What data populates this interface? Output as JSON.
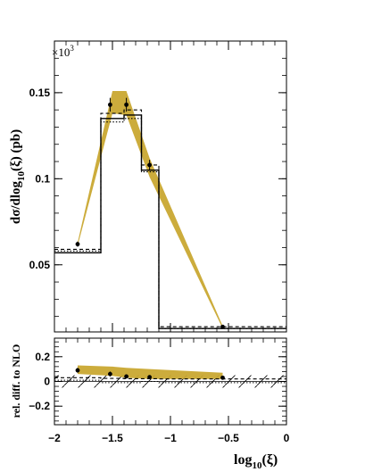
{
  "chart_data": [
    {
      "type": "line",
      "ylabel": "dσ/dlog10(ξ) (pb)",
      "ylabel_parts": [
        "dσ/dlog",
        "10",
        "(ξ) (pb)"
      ],
      "multiplier": "×10",
      "multiplier_exp": "3",
      "xlim": [
        -2.0,
        0.0
      ],
      "ylim": [
        0.011,
        0.18
      ],
      "y_ticks": [
        0.05,
        0.1,
        0.15
      ],
      "y_tick_labels": [
        "0.05",
        "0.1",
        "0.15"
      ],
      "bin_edges": [
        -2.0,
        -1.6,
        -1.4,
        -1.25,
        -1.1,
        0.0
      ],
      "series": [
        {
          "style": "solid",
          "values": [
            0.057,
            0.135,
            0.137,
            0.105,
            0.013
          ]
        },
        {
          "style": "dashed",
          "values": [
            0.059,
            0.138,
            0.14,
            0.108,
            0.014
          ]
        },
        {
          "style": "dotted",
          "values": [
            0.058,
            0.133,
            0.135,
            0.104,
            0.013
          ]
        }
      ],
      "band": {
        "color": "#c9a832",
        "x": [
          -1.8,
          -1.5,
          -1.38,
          -1.18,
          -0.55
        ],
        "low": [
          0.061,
          0.138,
          0.137,
          0.101,
          0.013
        ],
        "high": [
          0.063,
          0.151,
          0.151,
          0.112,
          0.0145
        ]
      },
      "points": {
        "x": [
          -1.8,
          -1.52,
          -1.38,
          -1.18,
          -0.55
        ],
        "y": [
          0.062,
          0.143,
          0.143,
          0.108,
          0.014
        ],
        "err": [
          0.0015,
          0.004,
          0.004,
          0.003,
          0.0008
        ]
      }
    },
    {
      "type": "line",
      "ylabel": "rel. diff. to NLO",
      "xlabel_parts": [
        "log",
        "10",
        "(ξ)"
      ],
      "xlim": [
        -2.0,
        0.0
      ],
      "ylim": [
        -0.35,
        0.35
      ],
      "y_ticks": [
        -0.2,
        0.0,
        0.2
      ],
      "y_tick_labels": [
        "−0.2",
        "0",
        "0.2"
      ],
      "x_ticks": [
        -2.0,
        -1.5,
        -1.0,
        -0.5,
        0.0
      ],
      "x_tick_labels": [
        "−2",
        "−1.5",
        "−1",
        "−0.5",
        "0"
      ],
      "bin_edges": [
        -2.0,
        -1.6,
        -1.4,
        -1.25,
        -1.1,
        0.0
      ],
      "hatch_band": {
        "low": -0.05,
        "high": 0.05
      },
      "series": [
        {
          "style": "dashed",
          "values": [
            0.03,
            0.025,
            0.022,
            0.022,
            0.02
          ]
        },
        {
          "style": "dotted",
          "values": [
            0.01,
            -0.01,
            -0.01,
            0.0,
            -0.01
          ]
        }
      ],
      "band": {
        "color": "#c9a832",
        "x": [
          -1.8,
          -1.5,
          -1.38,
          -1.18,
          -0.55
        ],
        "low": [
          0.06,
          0.045,
          0.03,
          0.02,
          0.02
        ],
        "high": [
          0.13,
          0.12,
          0.11,
          0.1,
          0.07
        ]
      },
      "points": {
        "x": [
          -1.8,
          -1.52,
          -1.38,
          -1.18,
          -0.55
        ],
        "y": [
          0.09,
          0.06,
          0.04,
          0.035,
          0.03
        ],
        "err": [
          0.02,
          0.02,
          0.015,
          0.015,
          0.015
        ]
      }
    }
  ]
}
